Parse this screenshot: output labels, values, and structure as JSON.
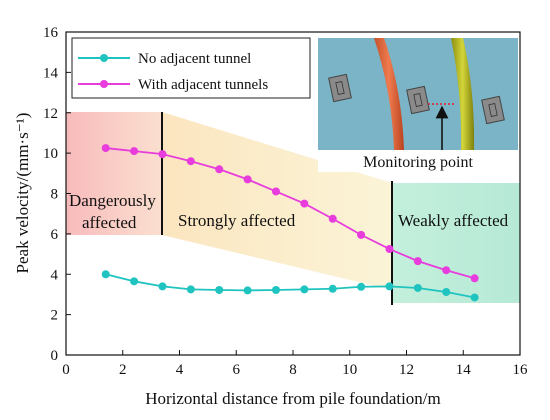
{
  "chart_data": {
    "type": "line",
    "xlabel": "Horizontal distance from pile foundation/m",
    "ylabel": "Peak velocity/(mm·s⁻¹)",
    "xlim": [
      0,
      16
    ],
    "ylim": [
      0,
      16
    ],
    "xticks": [
      0,
      2,
      4,
      6,
      8,
      10,
      12,
      14,
      16
    ],
    "yticks": [
      0,
      2,
      4,
      6,
      8,
      10,
      12,
      14,
      16
    ],
    "x": [
      1.4,
      2.4,
      3.4,
      4.4,
      5.4,
      6.4,
      7.4,
      8.4,
      9.4,
      10.4,
      11.4,
      12.4,
      13.4,
      14.4
    ],
    "series": [
      {
        "name": "No adjacent tunnel",
        "color": "#1fc4c0",
        "values": [
          4.0,
          3.65,
          3.4,
          3.25,
          3.22,
          3.2,
          3.22,
          3.25,
          3.28,
          3.38,
          3.4,
          3.32,
          3.12,
          2.85
        ]
      },
      {
        "name": "With adjacent tunnels",
        "color": "#e83cdd",
        "values": [
          10.25,
          10.1,
          9.95,
          9.6,
          9.2,
          8.7,
          8.1,
          7.5,
          6.75,
          5.95,
          5.25,
          4.65,
          4.2,
          3.8
        ]
      }
    ],
    "zones": [
      {
        "label_lines": [
          "Dangerously",
          "affected"
        ],
        "color": "#f7b6b3"
      },
      {
        "label_lines": [
          "Strongly affected"
        ],
        "color": "#fbe6b0"
      },
      {
        "label_lines": [
          "Weakly affected"
        ],
        "color": "#b5ecd6"
      }
    ],
    "zone_boundaries_x": [
      3.45,
      11.3
    ],
    "legend_position": "top-left",
    "grid": false,
    "inset": {
      "label": "Monitoring point",
      "icon": "tunnel-section-icon"
    }
  }
}
